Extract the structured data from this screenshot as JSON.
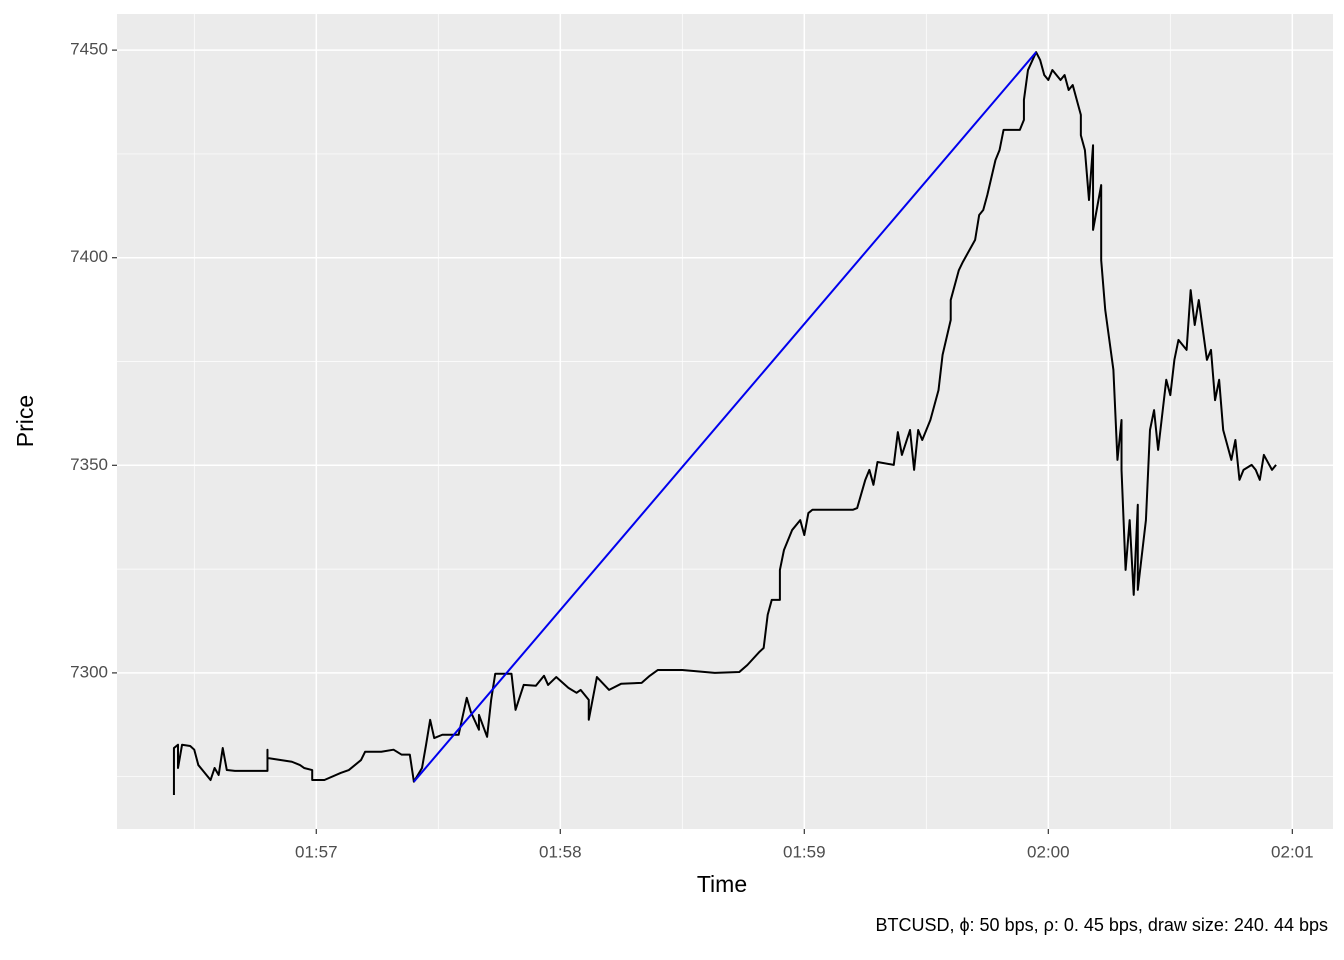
{
  "chart_data": {
    "type": "line",
    "x_label": "Time",
    "y_label": "Price",
    "caption": "BTCUSD, ϕ: 50 bps, ρ: 0. 45 bps, draw size: 240. 44 bps",
    "xlim": [
      "01:56:11",
      "02:01:10"
    ],
    "xticks": [
      "01:57",
      "01:58",
      "01:59",
      "02:00",
      "02:01"
    ],
    "ylim": [
      7262.4,
      7458.7
    ],
    "yticks": [
      7300,
      7350,
      7400,
      7450
    ],
    "grid": true,
    "series": [
      {
        "color": "#000000",
        "x": [
          "01:56:25",
          "01:56:25",
          "01:56:26",
          "01:56:26",
          "01:56:27",
          "01:56:29",
          "01:56:30",
          "01:56:31",
          "01:56:32",
          "01:56:34",
          "01:56:35",
          "01:56:36",
          "01:56:37",
          "01:56:38",
          "01:56:40",
          "01:56:48",
          "01:56:48",
          "01:56:48",
          "01:56:54",
          "01:56:56",
          "01:56:57",
          "01:56:59",
          "01:56:59",
          "01:57:02",
          "01:57:06",
          "01:57:08",
          "01:57:11",
          "01:57:12",
          "01:57:16",
          "01:57:19",
          "01:57:21",
          "01:57:23",
          "01:57:24",
          "01:57:26",
          "01:57:27",
          "01:57:28",
          "01:57:29",
          "01:57:31",
          "01:57:35",
          "01:57:37",
          "01:57:38",
          "01:57:40",
          "01:57:40",
          "01:57:42",
          "01:57:43",
          "01:57:44",
          "01:57:48",
          "01:57:49",
          "01:57:51",
          "01:57:54",
          "01:57:56",
          "01:57:57",
          "01:57:59",
          "01:58:02",
          "01:58:04",
          "01:58:05",
          "01:58:07",
          "01:58:07",
          "01:58:09",
          "01:58:12",
          "01:58:15",
          "01:58:20",
          "01:58:22",
          "01:58:24",
          "01:58:30",
          "01:58:38",
          "01:58:44",
          "01:58:46",
          "01:58:49",
          "01:58:50",
          "01:58:51",
          "01:58:52",
          "01:58:54",
          "01:58:54",
          "01:58:55",
          "01:58:57",
          "01:58:59",
          "01:59:00",
          "01:59:01",
          "01:59:02",
          "01:59:12",
          "01:59:13",
          "01:59:15",
          "01:59:16",
          "01:59:17",
          "01:59:18",
          "01:59:22",
          "01:59:23",
          "01:59:24",
          "01:59:26",
          "01:59:27",
          "01:59:28",
          "01:59:29",
          "01:59:31",
          "01:59:33",
          "01:59:34",
          "01:59:36",
          "01:59:36",
          "01:59:38",
          "01:59:39",
          "01:59:42",
          "01:59:43",
          "01:59:44",
          "01:59:45",
          "01:59:47",
          "01:59:48",
          "01:59:49",
          "01:59:53",
          "01:59:54",
          "01:59:54",
          "01:59:55",
          "01:59:57",
          "01:59:58",
          "01:59:59",
          "02:00:00",
          "02:00:01",
          "02:00:03",
          "02:00:04",
          "02:00:05",
          "02:00:06",
          "02:00:08",
          "02:00:08",
          "02:00:09",
          "02:00:10",
          "02:00:11",
          "02:00:11",
          "02:00:13",
          "02:00:13",
          "02:00:14",
          "02:00:15",
          "02:00:16",
          "02:00:17",
          "02:00:18",
          "02:00:18",
          "02:00:19",
          "02:00:20",
          "02:00:21",
          "02:00:22",
          "02:00:22",
          "02:00:24",
          "02:00:25",
          "02:00:26",
          "02:00:27",
          "02:00:29",
          "02:00:30",
          "02:00:31",
          "02:00:32",
          "02:00:34",
          "02:00:35",
          "02:00:36",
          "02:00:37",
          "02:00:39",
          "02:00:40",
          "02:00:41",
          "02:00:42",
          "02:00:43",
          "02:00:45",
          "02:00:46",
          "02:00:47",
          "02:00:48",
          "02:00:50",
          "02:00:51",
          "02:00:52",
          "02:00:53",
          "02:00:55",
          "02:00:56"
        ],
        "values": [
          7270.6,
          7281.9,
          7282.7,
          7277.1,
          7282.7,
          7282.4,
          7281.5,
          7277.8,
          7276.6,
          7274.2,
          7277.1,
          7275.4,
          7281.9,
          7276.6,
          7276.4,
          7276.4,
          7281.5,
          7279.5,
          7278.6,
          7277.8,
          7277.1,
          7276.6,
          7274.2,
          7274.2,
          7275.9,
          7276.6,
          7279.0,
          7281.0,
          7281.0,
          7281.5,
          7280.3,
          7280.3,
          7273.8,
          7277.1,
          7282.7,
          7288.7,
          7284.3,
          7285.1,
          7285.1,
          7294.0,
          7290.6,
          7286.3,
          7289.9,
          7284.6,
          7293.5,
          7299.8,
          7299.8,
          7291.1,
          7297.1,
          7296.9,
          7299.3,
          7297.1,
          7299.0,
          7296.4,
          7295.2,
          7295.9,
          7293.5,
          7288.7,
          7299.0,
          7295.9,
          7297.4,
          7297.6,
          7299.3,
          7300.7,
          7300.7,
          7300.0,
          7300.2,
          7301.9,
          7305.1,
          7306.0,
          7314.0,
          7317.6,
          7317.6,
          7324.8,
          7329.6,
          7334.4,
          7336.8,
          7333.2,
          7338.5,
          7339.3,
          7339.3,
          7339.7,
          7346.5,
          7348.9,
          7345.3,
          7350.8,
          7350.1,
          7358.0,
          7352.5,
          7358.5,
          7348.9,
          7358.5,
          7356.1,
          7360.9,
          7368.1,
          7376.6,
          7385.0,
          7389.8,
          7397.0,
          7399.0,
          7404.3,
          7410.3,
          7411.5,
          7415.1,
          7423.5,
          7425.9,
          7430.8,
          7430.8,
          7433.2,
          7438.0,
          7445.2,
          7449.5,
          7447.6,
          7444.0,
          7442.8,
          7445.2,
          7442.8,
          7444.0,
          7440.4,
          7441.6,
          7434.4,
          7429.5,
          7425.9,
          7413.9,
          7427.1,
          7406.7,
          7417.5,
          7399.4,
          7387.4,
          7380.2,
          7373.0,
          7351.3,
          7360.9,
          7348.9,
          7324.8,
          7336.8,
          7318.8,
          7340.5,
          7320.0,
          7336.8,
          7358.5,
          7363.3,
          7353.7,
          7370.6,
          7366.9,
          7375.4,
          7380.2,
          7377.8,
          7392.2,
          7383.8,
          7389.8,
          7375.4,
          7377.8,
          7365.7,
          7370.6,
          7358.5,
          7351.3,
          7356.1,
          7346.5,
          7348.9,
          7350.1,
          7348.9,
          7346.5,
          7352.5,
          7348.9,
          7350.1
        ]
      },
      {
        "color": "#0000ee",
        "x": [
          "01:57:24",
          "01:59:57"
        ],
        "values": [
          7273.8,
          7449.5
        ]
      }
    ]
  }
}
